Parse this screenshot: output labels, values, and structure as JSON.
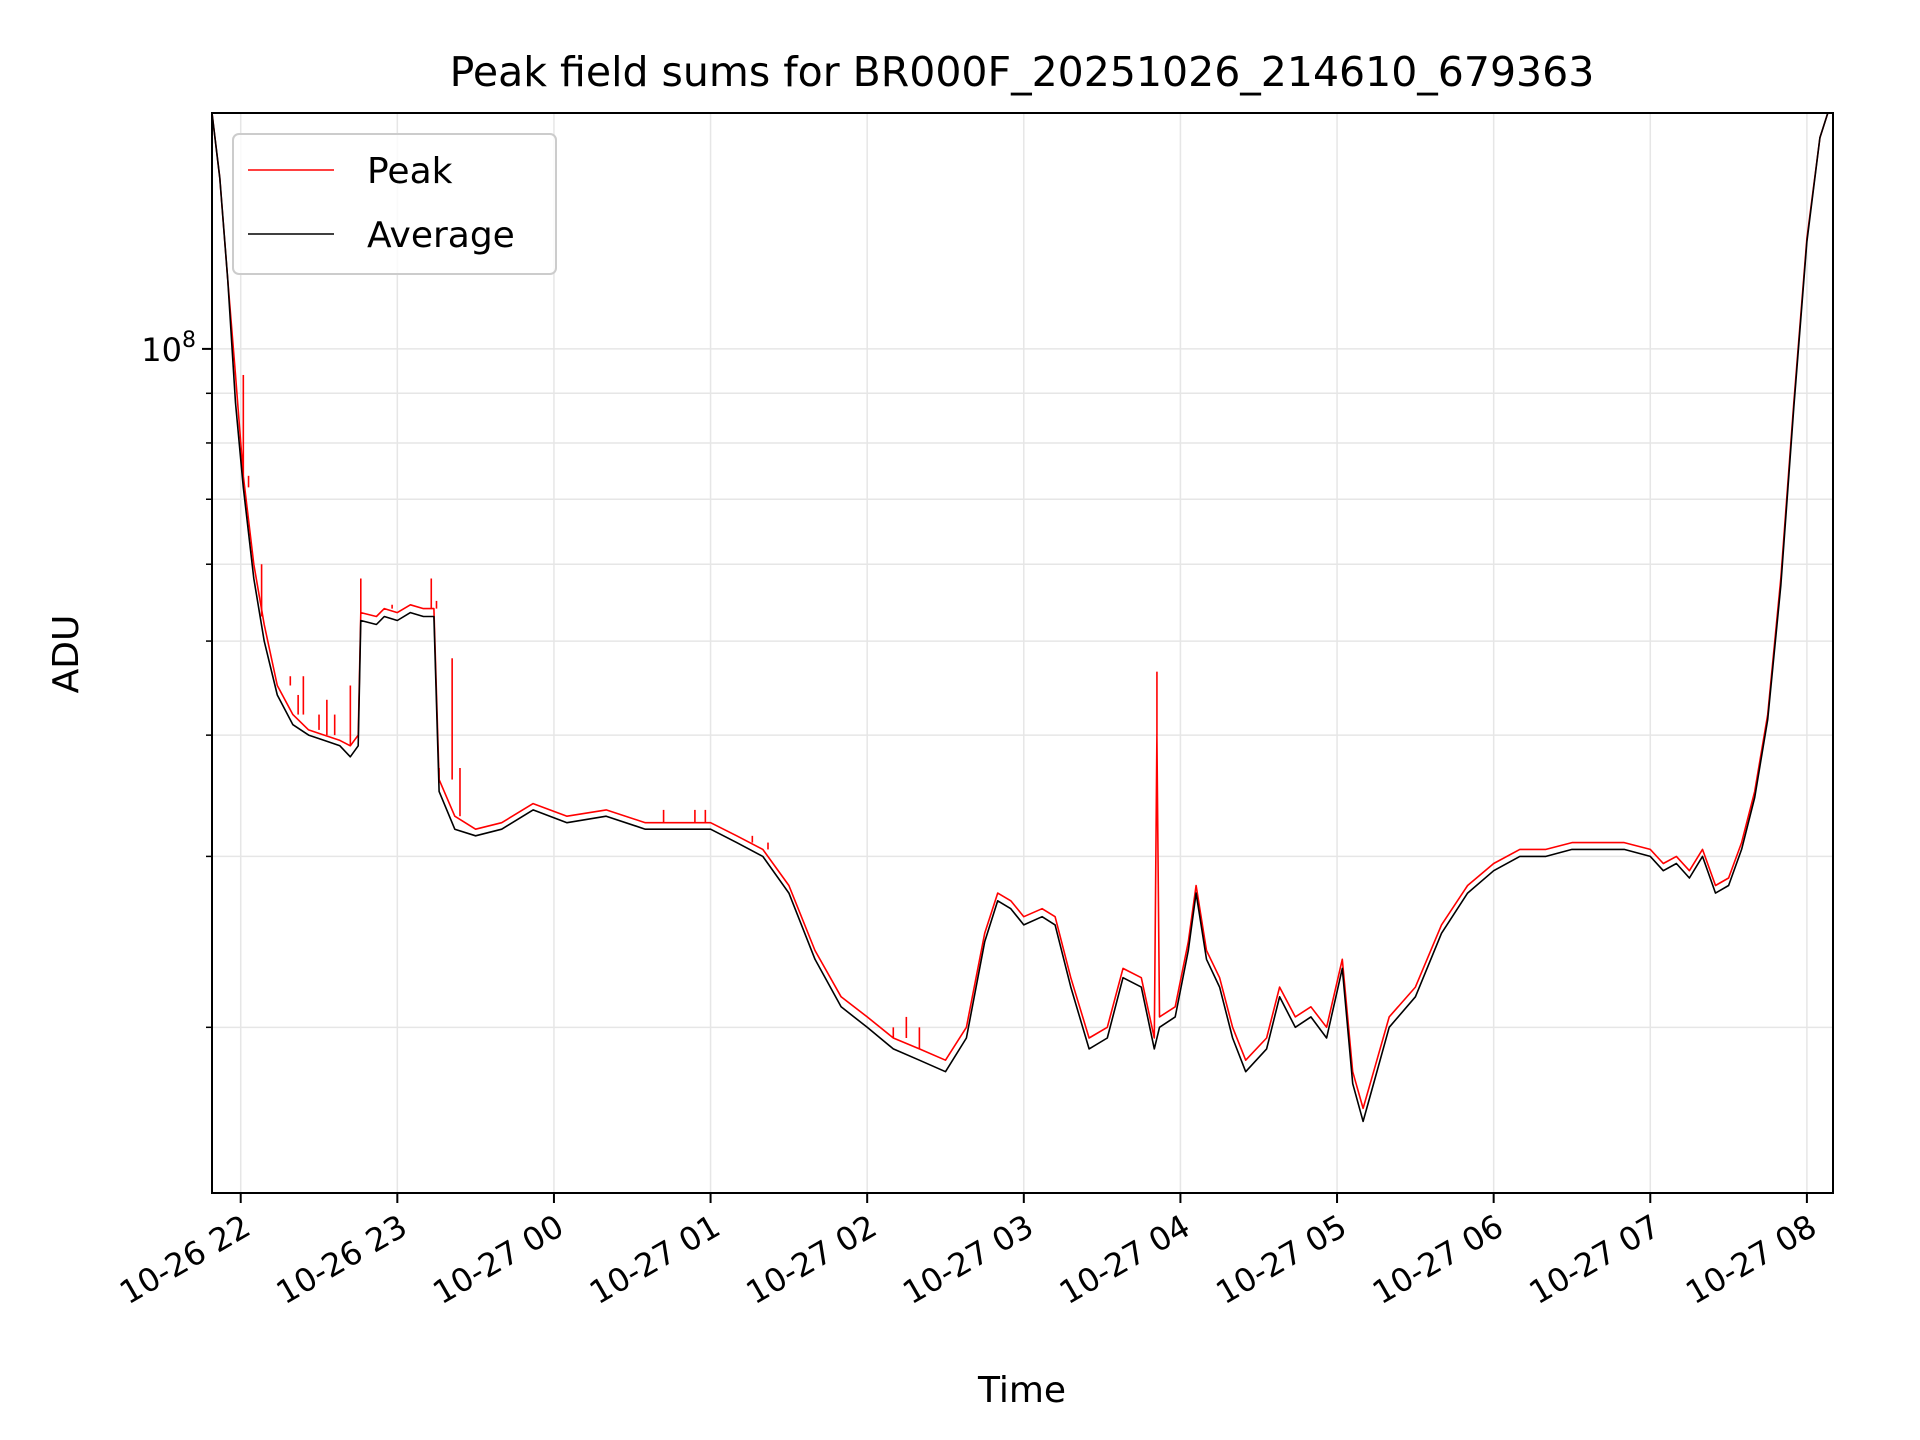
{
  "chart_data": {
    "type": "line",
    "title": "Peak field sums for BR000F_20251026_214610_679363",
    "xlabel": "Time",
    "ylabel": "ADU",
    "y_scale": "log",
    "ylim": [
      13500000,
      175000000
    ],
    "xlim": [
      "2025-10-26 21:49",
      "2025-10-27 08:10"
    ],
    "grid": true,
    "legend_position": "top-left",
    "x_ticks": [
      {
        "value": "2025-10-26 22:00",
        "label": "10-26 22"
      },
      {
        "value": "2025-10-26 23:00",
        "label": "10-26 23"
      },
      {
        "value": "2025-10-27 00:00",
        "label": "10-27 00"
      },
      {
        "value": "2025-10-27 01:00",
        "label": "10-27 01"
      },
      {
        "value": "2025-10-27 02:00",
        "label": "10-27 02"
      },
      {
        "value": "2025-10-27 03:00",
        "label": "10-27 03"
      },
      {
        "value": "2025-10-27 04:00",
        "label": "10-27 04"
      },
      {
        "value": "2025-10-27 05:00",
        "label": "10-27 05"
      },
      {
        "value": "2025-10-27 06:00",
        "label": "10-27 06"
      },
      {
        "value": "2025-10-27 07:00",
        "label": "10-27 07"
      },
      {
        "value": "2025-10-27 08:00",
        "label": "10-27 08"
      }
    ],
    "y_major_ticks": [
      {
        "value": 100000000,
        "label_base": "10",
        "label_exp": "8"
      }
    ],
    "y_minor_ticks": [
      20000000,
      30000000,
      40000000,
      50000000,
      60000000,
      70000000,
      80000000,
      90000000,
      200000000
    ],
    "series": [
      {
        "name": "Peak",
        "color": "#ff0000",
        "points": [
          [
            "2025-10-26 21:49",
            175000000
          ],
          [
            "2025-10-26 21:52",
            150000000
          ],
          [
            "2025-10-26 21:55",
            118000000
          ],
          [
            "2025-10-26 21:58",
            94000000
          ],
          [
            "2025-10-26 22:01",
            74000000
          ],
          [
            "2025-10-26 22:05",
            60000000
          ],
          [
            "2025-10-26 22:09",
            52000000
          ],
          [
            "2025-10-26 22:14",
            45000000
          ],
          [
            "2025-10-26 22:20",
            42000000
          ],
          [
            "2025-10-26 22:26",
            40500000
          ],
          [
            "2025-10-26 22:32",
            40000000
          ],
          [
            "2025-10-26 22:38",
            39500000
          ],
          [
            "2025-10-26 22:42",
            39000000
          ],
          [
            "2025-10-26 22:45",
            40000000
          ],
          [
            "2025-10-26 22:46",
            53500000
          ],
          [
            "2025-10-26 22:52",
            53000000
          ],
          [
            "2025-10-26 22:55",
            54000000
          ],
          [
            "2025-10-26 23:00",
            53500000
          ],
          [
            "2025-10-26 23:05",
            54500000
          ],
          [
            "2025-10-26 23:10",
            54000000
          ],
          [
            "2025-10-26 23:14",
            54000000
          ],
          [
            "2025-10-26 23:16",
            36000000
          ],
          [
            "2025-10-26 23:22",
            33000000
          ],
          [
            "2025-10-26 23:30",
            32000000
          ],
          [
            "2025-10-26 23:40",
            32500000
          ],
          [
            "2025-10-26 23:52",
            34000000
          ],
          [
            "2025-10-27 00:05",
            33000000
          ],
          [
            "2025-10-27 00:20",
            33500000
          ],
          [
            "2025-10-27 00:35",
            32500000
          ],
          [
            "2025-10-27 00:50",
            32500000
          ],
          [
            "2025-10-27 01:00",
            32500000
          ],
          [
            "2025-10-27 01:10",
            31500000
          ],
          [
            "2025-10-27 01:20",
            30500000
          ],
          [
            "2025-10-27 01:30",
            28000000
          ],
          [
            "2025-10-27 01:40",
            24000000
          ],
          [
            "2025-10-27 01:50",
            21500000
          ],
          [
            "2025-10-27 02:00",
            20500000
          ],
          [
            "2025-10-27 02:10",
            19500000
          ],
          [
            "2025-10-27 02:20",
            19000000
          ],
          [
            "2025-10-27 02:30",
            18500000
          ],
          [
            "2025-10-27 02:38",
            20000000
          ],
          [
            "2025-10-27 02:45",
            25000000
          ],
          [
            "2025-10-27 02:50",
            27500000
          ],
          [
            "2025-10-27 02:55",
            27000000
          ],
          [
            "2025-10-27 03:00",
            26000000
          ],
          [
            "2025-10-27 03:07",
            26500000
          ],
          [
            "2025-10-27 03:12",
            26000000
          ],
          [
            "2025-10-27 03:18",
            22500000
          ],
          [
            "2025-10-27 03:25",
            19500000
          ],
          [
            "2025-10-27 03:32",
            20000000
          ],
          [
            "2025-10-27 03:38",
            23000000
          ],
          [
            "2025-10-27 03:45",
            22500000
          ],
          [
            "2025-10-27 03:50",
            19500000
          ],
          [
            "2025-10-27 03:51",
            40000000
          ],
          [
            "2025-10-27 03:52",
            20500000
          ],
          [
            "2025-10-27 03:58",
            21000000
          ],
          [
            "2025-10-27 04:03",
            24500000
          ],
          [
            "2025-10-27 04:06",
            28000000
          ],
          [
            "2025-10-27 04:10",
            24000000
          ],
          [
            "2025-10-27 04:15",
            22500000
          ],
          [
            "2025-10-27 04:20",
            20000000
          ],
          [
            "2025-10-27 04:25",
            18500000
          ],
          [
            "2025-10-27 04:33",
            19500000
          ],
          [
            "2025-10-27 04:38",
            22000000
          ],
          [
            "2025-10-27 04:44",
            20500000
          ],
          [
            "2025-10-27 04:50",
            21000000
          ],
          [
            "2025-10-27 04:56",
            20000000
          ],
          [
            "2025-10-27 05:02",
            23500000
          ],
          [
            "2025-10-27 05:06",
            18000000
          ],
          [
            "2025-10-27 05:10",
            16500000
          ],
          [
            "2025-10-27 05:14",
            18000000
          ],
          [
            "2025-10-27 05:20",
            20500000
          ],
          [
            "2025-10-27 05:30",
            22000000
          ],
          [
            "2025-10-27 05:40",
            25500000
          ],
          [
            "2025-10-27 05:50",
            28000000
          ],
          [
            "2025-10-27 06:00",
            29500000
          ],
          [
            "2025-10-27 06:10",
            30500000
          ],
          [
            "2025-10-27 06:20",
            30500000
          ],
          [
            "2025-10-27 06:30",
            31000000
          ],
          [
            "2025-10-27 06:40",
            31000000
          ],
          [
            "2025-10-27 06:50",
            31000000
          ],
          [
            "2025-10-27 07:00",
            30500000
          ],
          [
            "2025-10-27 07:05",
            29500000
          ],
          [
            "2025-10-27 07:10",
            30000000
          ],
          [
            "2025-10-27 07:15",
            29000000
          ],
          [
            "2025-10-27 07:20",
            30500000
          ],
          [
            "2025-10-27 07:25",
            28000000
          ],
          [
            "2025-10-27 07:30",
            28500000
          ],
          [
            "2025-10-27 07:35",
            31000000
          ],
          [
            "2025-10-27 07:40",
            35000000
          ],
          [
            "2025-10-27 07:45",
            42000000
          ],
          [
            "2025-10-27 07:50",
            58000000
          ],
          [
            "2025-10-27 07:55",
            88000000
          ],
          [
            "2025-10-27 08:00",
            130000000
          ],
          [
            "2025-10-27 08:05",
            165000000
          ],
          [
            "2025-10-27 08:08",
            175000000
          ]
        ],
        "spikes": [
          [
            "2025-10-26 21:59",
            94000000
          ],
          [
            "2025-10-26 22:01",
            94000000
          ],
          [
            "2025-10-26 22:03",
            72000000
          ],
          [
            "2025-10-26 22:05",
            60000000
          ],
          [
            "2025-10-26 22:08",
            53000000
          ],
          [
            "2025-10-26 22:19",
            46000000
          ],
          [
            "2025-10-26 22:22",
            44000000
          ],
          [
            "2025-10-26 22:24",
            46000000
          ],
          [
            "2025-10-26 22:30",
            42000000
          ],
          [
            "2025-10-26 22:33",
            43500000
          ],
          [
            "2025-10-26 22:36",
            42000000
          ],
          [
            "2025-10-26 22:42",
            45000000
          ],
          [
            "2025-10-26 22:46",
            58000000
          ],
          [
            "2025-10-26 22:58",
            54500000
          ],
          [
            "2025-10-26 23:13",
            58000000
          ],
          [
            "2025-10-26 23:15",
            55000000
          ],
          [
            "2025-10-26 23:16",
            37000000
          ],
          [
            "2025-10-26 23:21",
            48000000
          ],
          [
            "2025-10-26 23:24",
            37000000
          ],
          [
            "2025-10-27 00:42",
            33500000
          ],
          [
            "2025-10-27 00:54",
            33500000
          ],
          [
            "2025-10-27 00:58",
            33500000
          ],
          [
            "2025-10-27 01:13",
            31500000
          ],
          [
            "2025-10-27 01:16",
            31000000
          ],
          [
            "2025-10-27 01:22",
            31000000
          ],
          [
            "2025-10-27 01:24",
            30500000
          ],
          [
            "2025-10-27 02:10",
            20000000
          ],
          [
            "2025-10-27 02:15",
            20500000
          ],
          [
            "2025-10-27 02:20",
            20000000
          ],
          [
            "2025-10-27 03:51",
            46500000
          ]
        ]
      },
      {
        "name": "Average",
        "color": "#000000",
        "points": [
          [
            "2025-10-26 21:49",
            175000000
          ],
          [
            "2025-10-26 21:52",
            150000000
          ],
          [
            "2025-10-26 21:55",
            118000000
          ],
          [
            "2025-10-26 21:58",
            88000000
          ],
          [
            "2025-10-26 22:01",
            72000000
          ],
          [
            "2025-10-26 22:05",
            58000000
          ],
          [
            "2025-10-26 22:09",
            50000000
          ],
          [
            "2025-10-26 22:14",
            44000000
          ],
          [
            "2025-10-26 22:20",
            41000000
          ],
          [
            "2025-10-26 22:26",
            40000000
          ],
          [
            "2025-10-26 22:32",
            39500000
          ],
          [
            "2025-10-26 22:38",
            39000000
          ],
          [
            "2025-10-26 22:42",
            38000000
          ],
          [
            "2025-10-26 22:45",
            39000000
          ],
          [
            "2025-10-26 22:46",
            52500000
          ],
          [
            "2025-10-26 22:52",
            52000000
          ],
          [
            "2025-10-26 22:55",
            53000000
          ],
          [
            "2025-10-26 23:00",
            52500000
          ],
          [
            "2025-10-26 23:05",
            53500000
          ],
          [
            "2025-10-26 23:10",
            53000000
          ],
          [
            "2025-10-26 23:14",
            53000000
          ],
          [
            "2025-10-26 23:16",
            35000000
          ],
          [
            "2025-10-26 23:22",
            32000000
          ],
          [
            "2025-10-26 23:30",
            31500000
          ],
          [
            "2025-10-26 23:40",
            32000000
          ],
          [
            "2025-10-26 23:52",
            33500000
          ],
          [
            "2025-10-27 00:05",
            32500000
          ],
          [
            "2025-10-27 00:20",
            33000000
          ],
          [
            "2025-10-27 00:35",
            32000000
          ],
          [
            "2025-10-27 00:50",
            32000000
          ],
          [
            "2025-10-27 01:00",
            32000000
          ],
          [
            "2025-10-27 01:10",
            31000000
          ],
          [
            "2025-10-27 01:20",
            30000000
          ],
          [
            "2025-10-27 01:30",
            27500000
          ],
          [
            "2025-10-27 01:40",
            23500000
          ],
          [
            "2025-10-27 01:50",
            21000000
          ],
          [
            "2025-10-27 02:00",
            20000000
          ],
          [
            "2025-10-27 02:10",
            19000000
          ],
          [
            "2025-10-27 02:20",
            18500000
          ],
          [
            "2025-10-27 02:30",
            18000000
          ],
          [
            "2025-10-27 02:38",
            19500000
          ],
          [
            "2025-10-27 02:45",
            24500000
          ],
          [
            "2025-10-27 02:50",
            27000000
          ],
          [
            "2025-10-27 02:55",
            26500000
          ],
          [
            "2025-10-27 03:00",
            25500000
          ],
          [
            "2025-10-27 03:07",
            26000000
          ],
          [
            "2025-10-27 03:12",
            25500000
          ],
          [
            "2025-10-27 03:18",
            22000000
          ],
          [
            "2025-10-27 03:25",
            19000000
          ],
          [
            "2025-10-27 03:32",
            19500000
          ],
          [
            "2025-10-27 03:38",
            22500000
          ],
          [
            "2025-10-27 03:45",
            22000000
          ],
          [
            "2025-10-27 03:50",
            19000000
          ],
          [
            "2025-10-27 03:52",
            20000000
          ],
          [
            "2025-10-27 03:58",
            20500000
          ],
          [
            "2025-10-27 04:03",
            24000000
          ],
          [
            "2025-10-27 04:06",
            27500000
          ],
          [
            "2025-10-27 04:10",
            23500000
          ],
          [
            "2025-10-27 04:15",
            22000000
          ],
          [
            "2025-10-27 04:20",
            19500000
          ],
          [
            "2025-10-27 04:25",
            18000000
          ],
          [
            "2025-10-27 04:33",
            19000000
          ],
          [
            "2025-10-27 04:38",
            21500000
          ],
          [
            "2025-10-27 04:44",
            20000000
          ],
          [
            "2025-10-27 04:50",
            20500000
          ],
          [
            "2025-10-27 04:56",
            19500000
          ],
          [
            "2025-10-27 05:02",
            23000000
          ],
          [
            "2025-10-27 05:06",
            17500000
          ],
          [
            "2025-10-27 05:10",
            16000000
          ],
          [
            "2025-10-27 05:14",
            17500000
          ],
          [
            "2025-10-27 05:20",
            20000000
          ],
          [
            "2025-10-27 05:30",
            21500000
          ],
          [
            "2025-10-27 05:40",
            25000000
          ],
          [
            "2025-10-27 05:50",
            27500000
          ],
          [
            "2025-10-27 06:00",
            29000000
          ],
          [
            "2025-10-27 06:10",
            30000000
          ],
          [
            "2025-10-27 06:20",
            30000000
          ],
          [
            "2025-10-27 06:30",
            30500000
          ],
          [
            "2025-10-27 06:40",
            30500000
          ],
          [
            "2025-10-27 06:50",
            30500000
          ],
          [
            "2025-10-27 07:00",
            30000000
          ],
          [
            "2025-10-27 07:05",
            29000000
          ],
          [
            "2025-10-27 07:10",
            29500000
          ],
          [
            "2025-10-27 07:15",
            28500000
          ],
          [
            "2025-10-27 07:20",
            30000000
          ],
          [
            "2025-10-27 07:25",
            27500000
          ],
          [
            "2025-10-27 07:30",
            28000000
          ],
          [
            "2025-10-27 07:35",
            30500000
          ],
          [
            "2025-10-27 07:40",
            34500000
          ],
          [
            "2025-10-27 07:45",
            41500000
          ],
          [
            "2025-10-27 07:50",
            57000000
          ],
          [
            "2025-10-27 07:55",
            87000000
          ],
          [
            "2025-10-27 08:00",
            129000000
          ],
          [
            "2025-10-27 08:05",
            165000000
          ],
          [
            "2025-10-27 08:08",
            175000000
          ]
        ]
      }
    ]
  }
}
